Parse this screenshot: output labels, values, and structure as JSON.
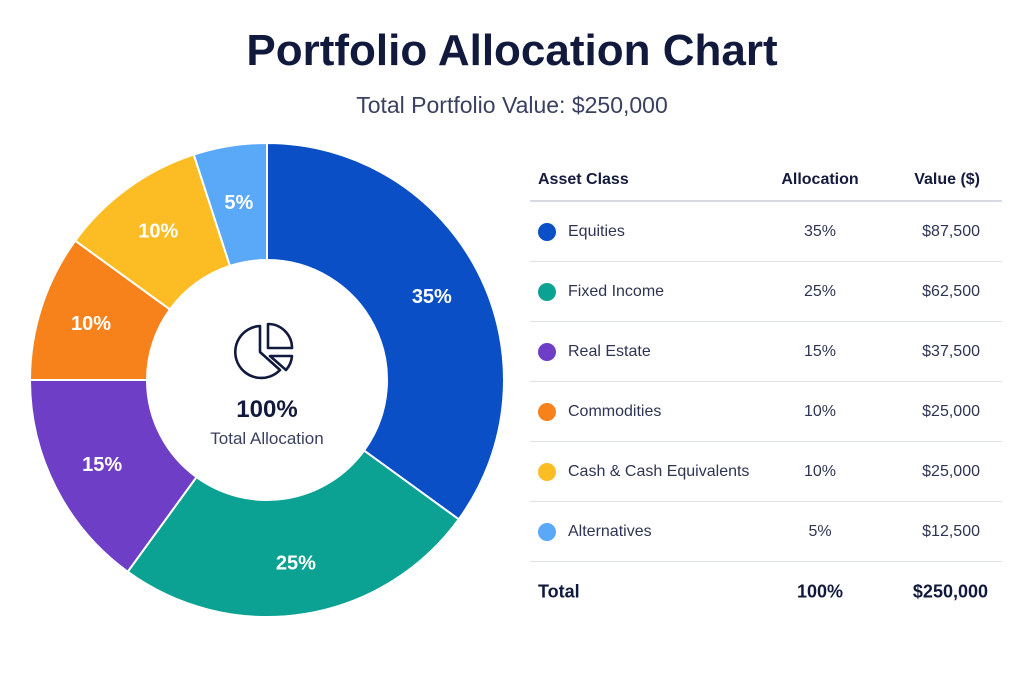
{
  "title": "Portfolio Allocation Chart",
  "subtitle": "Total Portfolio Value: $250,000",
  "center": {
    "value": "100%",
    "label": "Total Allocation",
    "icon": "pie-chart-icon"
  },
  "chart_data": {
    "type": "pie",
    "donut": true,
    "title": "Portfolio Allocation Chart",
    "categories": [
      "Equities",
      "Fixed Income",
      "Real Estate",
      "Commodities",
      "Cash & Cash Equivalents",
      "Alternatives"
    ],
    "values": [
      35,
      25,
      15,
      10,
      10,
      5
    ],
    "labels": [
      "35%",
      "25%",
      "15%",
      "10%",
      "10%",
      "5%"
    ],
    "colors": [
      "#0b4fc6",
      "#0ca293",
      "#6e3fc6",
      "#f7821b",
      "#fbbd23",
      "#5aa9f8"
    ]
  },
  "table": {
    "headers": [
      "Asset Class",
      "Allocation",
      "Value ($)"
    ],
    "rows": [
      {
        "name": "Equities",
        "alloc": "35%",
        "value": "$87,500"
      },
      {
        "name": "Fixed Income",
        "alloc": "25%",
        "value": "$62,500"
      },
      {
        "name": "Real Estate",
        "alloc": "15%",
        "value": "$37,500"
      },
      {
        "name": "Commodities",
        "alloc": "10%",
        "value": "$25,000"
      },
      {
        "name": "Cash & Cash Equivalents",
        "alloc": "10%",
        "value": "$25,000"
      },
      {
        "name": "Alternatives",
        "alloc": "5%",
        "value": "$12,500"
      }
    ],
    "total": {
      "label": "Total",
      "alloc": "100%",
      "value": "$250,000"
    }
  }
}
